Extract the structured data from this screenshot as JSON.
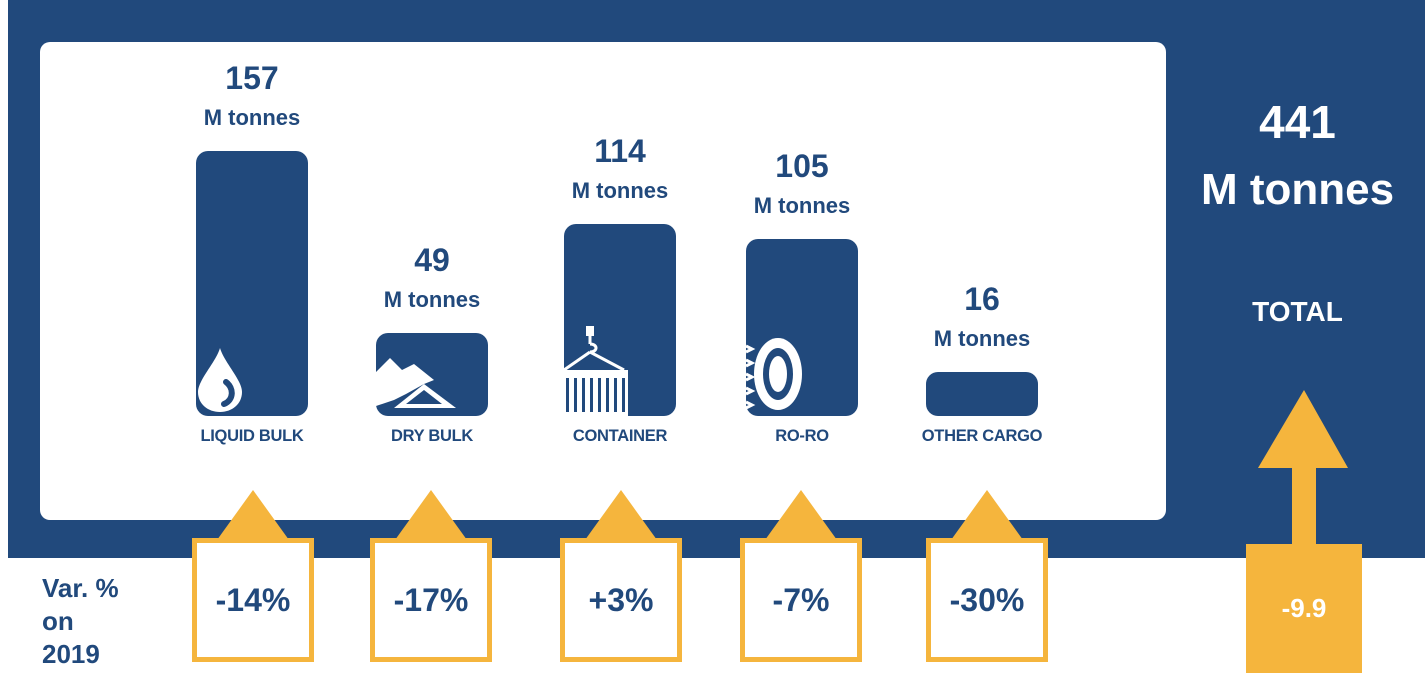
{
  "chart_data": {
    "type": "bar",
    "categories": [
      "LIQUID BULK",
      "DRY BULK",
      "CONTAINER",
      "RO-RO",
      "OTHER CARGO"
    ],
    "values": [
      157,
      49,
      114,
      105,
      16
    ],
    "value_labels": [
      "157",
      "49",
      "114",
      "105",
      "16"
    ],
    "unit_label": "M tonnes",
    "variation_label": [
      "Var. %",
      "on",
      "2019"
    ],
    "variations": [
      "-14%",
      "-17%",
      "+3%",
      "-7%",
      "-30%"
    ],
    "total": {
      "value": "441",
      "unit": "M tonnes",
      "label": "TOTAL",
      "variation": "-9.9"
    },
    "icons": [
      "drop-icon",
      "pile-icon",
      "container-crane-icon",
      "tire-icon",
      ""
    ],
    "colors": {
      "navy": "#21497c",
      "accent": "#f5b53d",
      "background": "#ffffff"
    }
  }
}
